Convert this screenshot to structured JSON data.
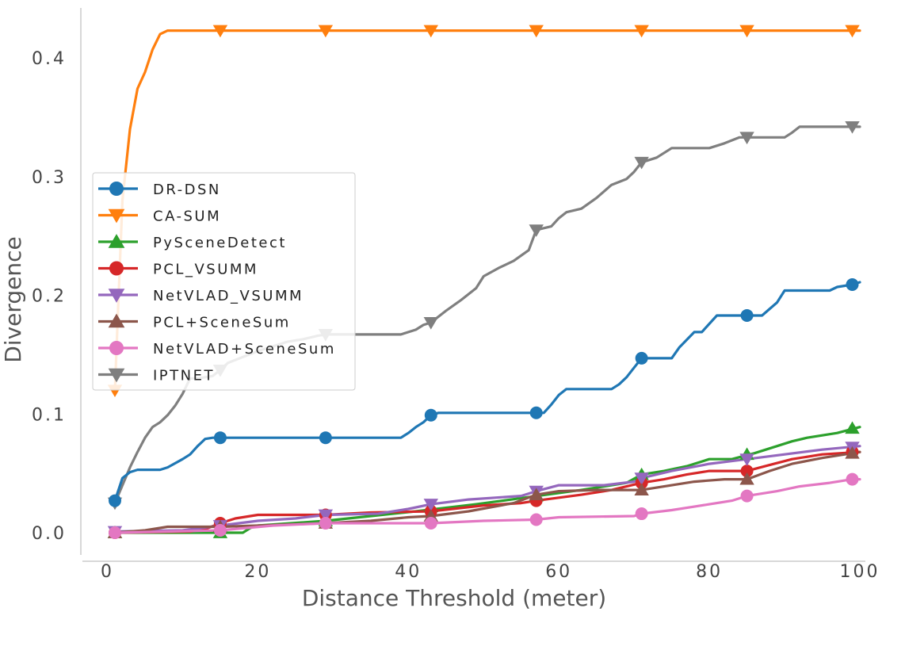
{
  "chart_data": {
    "type": "line",
    "title": "",
    "xlabel": "Distance Threshold (meter)",
    "ylabel": "Divergence",
    "xlim": [
      -1.5,
      101
    ],
    "ylim": [
      -0.02,
      0.445
    ],
    "xticks": [
      0,
      20,
      40,
      60,
      80,
      100
    ],
    "yticks": [
      0.0,
      0.1,
      0.2,
      0.3,
      0.4
    ],
    "xtick_labels": [
      "0",
      "20",
      "40",
      "60",
      "80",
      "100"
    ],
    "ytick_labels": [
      "0.0",
      "0.1",
      "0.2",
      "0.3",
      "0.4"
    ],
    "grid": false,
    "legend_position": "center-left",
    "marker_x": [
      1,
      15,
      29,
      43,
      57,
      71,
      85,
      99
    ],
    "series": [
      {
        "name": "DR-DSN",
        "color": "#1f77b4",
        "marker": "circle",
        "points": [
          [
            1,
            0.027
          ],
          [
            2,
            0.046
          ],
          [
            3,
            0.051
          ],
          [
            4,
            0.053
          ],
          [
            7,
            0.053
          ],
          [
            8,
            0.055
          ],
          [
            10,
            0.062
          ],
          [
            11,
            0.066
          ],
          [
            12,
            0.073
          ],
          [
            13,
            0.079
          ],
          [
            14,
            0.08
          ],
          [
            39,
            0.08
          ],
          [
            40,
            0.084
          ],
          [
            41,
            0.089
          ],
          [
            42,
            0.093
          ],
          [
            43,
            0.099
          ],
          [
            44,
            0.101
          ],
          [
            58,
            0.101
          ],
          [
            59,
            0.108
          ],
          [
            60,
            0.116
          ],
          [
            61,
            0.121
          ],
          [
            67,
            0.121
          ],
          [
            68,
            0.125
          ],
          [
            69,
            0.131
          ],
          [
            70,
            0.139
          ],
          [
            71,
            0.147
          ],
          [
            75,
            0.147
          ],
          [
            76,
            0.156
          ],
          [
            78,
            0.169
          ],
          [
            79,
            0.169
          ],
          [
            81,
            0.183
          ],
          [
            87,
            0.183
          ],
          [
            89,
            0.194
          ],
          [
            90,
            0.204
          ],
          [
            96,
            0.204
          ],
          [
            97,
            0.207
          ],
          [
            99,
            0.209
          ],
          [
            100,
            0.211
          ]
        ],
        "markers": [
          0.027,
          0.08,
          0.08,
          0.099,
          0.101,
          0.147,
          0.183,
          0.209
        ]
      },
      {
        "name": "CA-SUM",
        "color": "#ff7f0e",
        "marker": "triangle-down",
        "points": [
          [
            1,
            0.12
          ],
          [
            1.5,
            0.2
          ],
          [
            2,
            0.28
          ],
          [
            3,
            0.34
          ],
          [
            4,
            0.374
          ],
          [
            5,
            0.388
          ],
          [
            6,
            0.407
          ],
          [
            7,
            0.42
          ],
          [
            8,
            0.423
          ],
          [
            100,
            0.423
          ]
        ],
        "markers": [
          0.12,
          0.423,
          0.423,
          0.423,
          0.423,
          0.423,
          0.423,
          0.423
        ]
      },
      {
        "name": "PySceneDetect",
        "color": "#2ca02c",
        "marker": "triangle-up",
        "points": [
          [
            1,
            0.0
          ],
          [
            15,
            0.0
          ],
          [
            18,
            0.0
          ],
          [
            19,
            0.004
          ],
          [
            20,
            0.006
          ],
          [
            29,
            0.01
          ],
          [
            35,
            0.014
          ],
          [
            41,
            0.018
          ],
          [
            49,
            0.024
          ],
          [
            56,
            0.03
          ],
          [
            63,
            0.036
          ],
          [
            69,
            0.042
          ],
          [
            71,
            0.049
          ],
          [
            74,
            0.052
          ],
          [
            77,
            0.056
          ],
          [
            80,
            0.062
          ],
          [
            83,
            0.062
          ],
          [
            86,
            0.067
          ],
          [
            89,
            0.073
          ],
          [
            91,
            0.077
          ],
          [
            93,
            0.08
          ],
          [
            95,
            0.082
          ],
          [
            97,
            0.084
          ],
          [
            100,
            0.089
          ]
        ],
        "markers": [
          0.0,
          0.0,
          0.01,
          0.022,
          0.031,
          0.049,
          0.066,
          0.088
        ]
      },
      {
        "name": "PCL_VSUMM",
        "color": "#d62728",
        "marker": "circle",
        "points": [
          [
            1,
            0.0
          ],
          [
            11,
            0.001
          ],
          [
            13,
            0.003
          ],
          [
            15,
            0.008
          ],
          [
            17,
            0.012
          ],
          [
            20,
            0.015
          ],
          [
            29,
            0.015
          ],
          [
            35,
            0.017
          ],
          [
            43,
            0.018
          ],
          [
            50,
            0.023
          ],
          [
            55,
            0.025
          ],
          [
            57,
            0.027
          ],
          [
            63,
            0.032
          ],
          [
            67,
            0.036
          ],
          [
            71,
            0.042
          ],
          [
            74,
            0.045
          ],
          [
            77,
            0.049
          ],
          [
            80,
            0.052
          ],
          [
            85,
            0.052
          ],
          [
            88,
            0.057
          ],
          [
            91,
            0.062
          ],
          [
            95,
            0.066
          ],
          [
            100,
            0.068
          ]
        ],
        "markers": [
          0.0,
          0.008,
          0.015,
          0.018,
          0.027,
          0.042,
          0.052,
          0.068
        ]
      },
      {
        "name": "NetVLAD_VSUMM",
        "color": "#9467bd",
        "marker": "triangle-down",
        "points": [
          [
            1,
            0.001
          ],
          [
            10,
            0.002
          ],
          [
            15,
            0.006
          ],
          [
            20,
            0.01
          ],
          [
            25,
            0.012
          ],
          [
            29,
            0.015
          ],
          [
            36,
            0.016
          ],
          [
            40,
            0.02
          ],
          [
            43,
            0.024
          ],
          [
            48,
            0.028
          ],
          [
            55,
            0.031
          ],
          [
            57,
            0.035
          ],
          [
            60,
            0.04
          ],
          [
            66,
            0.04
          ],
          [
            70,
            0.043
          ],
          [
            71,
            0.046
          ],
          [
            75,
            0.052
          ],
          [
            80,
            0.058
          ],
          [
            85,
            0.062
          ],
          [
            90,
            0.066
          ],
          [
            95,
            0.07
          ],
          [
            100,
            0.073
          ]
        ],
        "markers": [
          0.001,
          0.006,
          0.015,
          0.024,
          0.035,
          0.046,
          0.062,
          0.072
        ]
      },
      {
        "name": "PCL+SceneSum",
        "color": "#8c564b",
        "marker": "triangle-up",
        "points": [
          [
            1,
            0.0
          ],
          [
            5,
            0.002
          ],
          [
            8,
            0.005
          ],
          [
            15,
            0.005
          ],
          [
            20,
            0.006
          ],
          [
            29,
            0.008
          ],
          [
            35,
            0.01
          ],
          [
            40,
            0.013
          ],
          [
            43,
            0.014
          ],
          [
            48,
            0.018
          ],
          [
            54,
            0.025
          ],
          [
            57,
            0.032
          ],
          [
            60,
            0.035
          ],
          [
            65,
            0.036
          ],
          [
            71,
            0.036
          ],
          [
            75,
            0.04
          ],
          [
            78,
            0.043
          ],
          [
            82,
            0.045
          ],
          [
            85,
            0.045
          ],
          [
            88,
            0.052
          ],
          [
            91,
            0.058
          ],
          [
            95,
            0.063
          ],
          [
            99,
            0.067
          ],
          [
            100,
            0.068
          ]
        ],
        "markers": [
          0.0,
          0.005,
          0.008,
          0.014,
          0.032,
          0.036,
          0.045,
          0.067
        ]
      },
      {
        "name": "NetVLAD+SceneSum",
        "color": "#e377c2",
        "marker": "circle",
        "points": [
          [
            1,
            0.0
          ],
          [
            15,
            0.002
          ],
          [
            22,
            0.006
          ],
          [
            29,
            0.008
          ],
          [
            43,
            0.008
          ],
          [
            50,
            0.01
          ],
          [
            57,
            0.011
          ],
          [
            60,
            0.013
          ],
          [
            70,
            0.014
          ],
          [
            71,
            0.016
          ],
          [
            75,
            0.019
          ],
          [
            78,
            0.022
          ],
          [
            80,
            0.024
          ],
          [
            83,
            0.027
          ],
          [
            85,
            0.031
          ],
          [
            89,
            0.035
          ],
          [
            92,
            0.039
          ],
          [
            96,
            0.042
          ],
          [
            99,
            0.045
          ],
          [
            100,
            0.045
          ]
        ],
        "markers": [
          0.0,
          0.002,
          0.008,
          0.008,
          0.011,
          0.016,
          0.031,
          0.045
        ]
      },
      {
        "name": "IPTNET",
        "color": "#7f7f7f",
        "marker": "triangle-down",
        "points": [
          [
            1,
            0.025
          ],
          [
            2,
            0.04
          ],
          [
            3,
            0.055
          ],
          [
            4,
            0.068
          ],
          [
            5,
            0.08
          ],
          [
            6,
            0.089
          ],
          [
            7,
            0.093
          ],
          [
            8,
            0.099
          ],
          [
            9,
            0.107
          ],
          [
            10,
            0.117
          ],
          [
            11,
            0.13
          ],
          [
            12,
            0.13
          ],
          [
            14,
            0.132
          ],
          [
            15,
            0.137
          ],
          [
            16,
            0.143
          ],
          [
            18,
            0.148
          ],
          [
            20,
            0.153
          ],
          [
            22,
            0.157
          ],
          [
            24,
            0.161
          ],
          [
            26,
            0.163
          ],
          [
            28,
            0.166
          ],
          [
            29,
            0.167
          ],
          [
            39,
            0.167
          ],
          [
            41,
            0.171
          ],
          [
            42,
            0.175
          ],
          [
            43,
            0.177
          ],
          [
            45,
            0.187
          ],
          [
            47,
            0.196
          ],
          [
            49,
            0.206
          ],
          [
            50,
            0.216
          ],
          [
            52,
            0.223
          ],
          [
            54,
            0.229
          ],
          [
            56,
            0.238
          ],
          [
            57,
            0.255
          ],
          [
            59,
            0.258
          ],
          [
            60,
            0.265
          ],
          [
            61,
            0.27
          ],
          [
            63,
            0.273
          ],
          [
            65,
            0.282
          ],
          [
            67,
            0.293
          ],
          [
            69,
            0.298
          ],
          [
            70,
            0.304
          ],
          [
            71,
            0.312
          ],
          [
            73,
            0.316
          ],
          [
            75,
            0.324
          ],
          [
            80,
            0.324
          ],
          [
            82,
            0.328
          ],
          [
            84,
            0.333
          ],
          [
            85,
            0.333
          ],
          [
            90,
            0.333
          ],
          [
            91,
            0.337
          ],
          [
            92,
            0.342
          ],
          [
            100,
            0.342
          ]
        ],
        "markers": [
          0.025,
          0.137,
          0.167,
          0.177,
          0.255,
          0.312,
          0.333,
          0.342
        ]
      }
    ]
  }
}
